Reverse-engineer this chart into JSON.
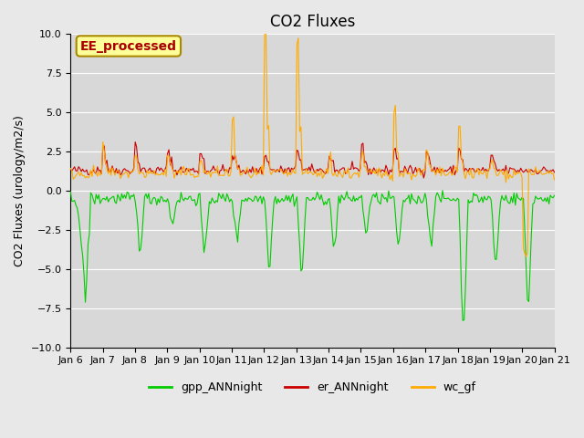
{
  "title": "CO2 Fluxes",
  "ylabel": "CO2 Fluxes (urology/m2/s)",
  "xlabel": "",
  "ylim": [
    -10,
    10
  ],
  "background_color": "#e8e8e8",
  "plot_bg_color": "#d8d8d8",
  "gpp_color": "#00cc00",
  "er_color": "#cc0000",
  "wc_color": "#ffaa00",
  "legend_label_gpp": "gpp_ANNnight",
  "legend_label_er": "er_ANNnight",
  "legend_label_wc": "wc_gf",
  "annotation_text": "EE_processed",
  "annotation_bg": "#ffff99",
  "annotation_border": "#aa8800",
  "title_fontsize": 12,
  "axis_fontsize": 9,
  "tick_fontsize": 8,
  "legend_fontsize": 9,
  "x_tick_labels": [
    "Jan 6",
    "Jan 7",
    "Jan 8",
    "Jan 9",
    "Jan 10",
    "Jan 11",
    "Jan 12",
    "Jan 13",
    "Jan 14",
    "Jan 15",
    "Jan 16",
    "Jan 17",
    "Jan 18",
    "Jan 19",
    "Jan 20",
    "Jan 21"
  ],
  "n_points": 360
}
